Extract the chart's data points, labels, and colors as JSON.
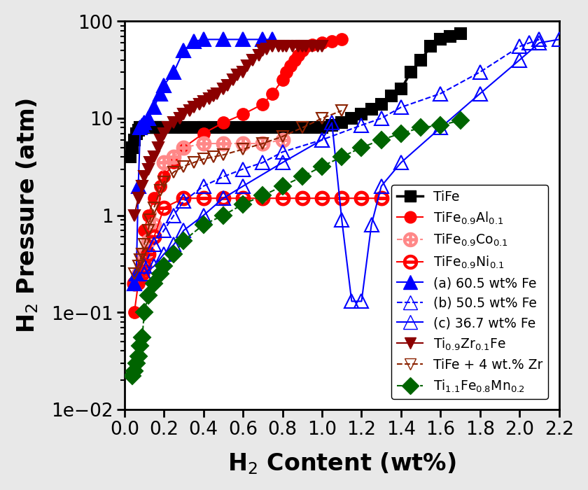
{
  "title": "",
  "xlabel": "H2 Content (wt%)",
  "ylabel": "H2 Pressure (atm)",
  "xlim": [
    0,
    2.2
  ],
  "ylim": [
    0.01,
    100
  ],
  "background_color": "#e8e8e8",
  "series": {
    "TiFe": {
      "color": "#000000",
      "marker": "s",
      "linestyle": "-",
      "linewidth": 2.5,
      "markersize": 12,
      "fillstyle": "full",
      "label": "TiFe",
      "x": [
        0.03,
        0.04,
        0.05,
        0.06,
        0.07,
        0.08,
        0.09,
        0.1,
        0.11,
        0.12,
        0.13,
        0.14,
        0.15,
        0.16,
        0.17,
        0.18,
        0.2,
        0.25,
        0.3,
        0.35,
        0.4,
        0.45,
        0.5,
        0.55,
        0.6,
        0.65,
        0.7,
        0.75,
        0.8,
        0.85,
        0.9,
        0.95,
        1.0,
        1.05,
        1.1,
        1.15,
        1.2,
        1.25,
        1.3,
        1.35,
        1.4,
        1.45,
        1.5,
        1.55,
        1.6,
        1.65,
        1.7
      ],
      "y": [
        4.0,
        5.0,
        6.0,
        7.0,
        7.5,
        8.0,
        8.0,
        8.0,
        8.0,
        8.0,
        8.0,
        8.0,
        8.0,
        8.0,
        8.0,
        8.0,
        8.0,
        8.0,
        8.0,
        8.0,
        8.0,
        8.0,
        8.0,
        8.0,
        8.0,
        8.0,
        8.0,
        8.0,
        8.0,
        8.0,
        8.0,
        8.0,
        8.0,
        8.5,
        9.0,
        10.0,
        11.0,
        12.5,
        14.0,
        17.0,
        20.0,
        30.0,
        40.0,
        55.0,
        65.0,
        70.0,
        75.0
      ]
    },
    "TiFe09Al01": {
      "color": "#ff0000",
      "marker": "o",
      "linestyle": "-",
      "linewidth": 1.5,
      "markersize": 12,
      "fillstyle": "full",
      "x": [
        0.05,
        0.07,
        0.09,
        0.1,
        0.12,
        0.15,
        0.18,
        0.2,
        0.25,
        0.3,
        0.4,
        0.5,
        0.6,
        0.7,
        0.75,
        0.8,
        0.82,
        0.84,
        0.86,
        0.88,
        0.9,
        0.92,
        0.95,
        1.0,
        1.05,
        1.1
      ],
      "y": [
        0.1,
        0.2,
        0.4,
        0.7,
        1.0,
        1.5,
        2.0,
        2.5,
        3.5,
        5.0,
        7.0,
        9.0,
        11.0,
        14.0,
        18.0,
        25.0,
        30.0,
        35.0,
        40.0,
        45.0,
        50.0,
        55.0,
        57.0,
        60.0,
        62.0,
        65.0
      ]
    },
    "TiFe09Co01": {
      "color": "#ff8888",
      "marker": "oplus",
      "linestyle": "--",
      "linewidth": 1.5,
      "markersize": 14,
      "fillstyle": "none",
      "x": [
        0.05,
        0.07,
        0.09,
        0.1,
        0.12,
        0.15,
        0.2,
        0.25,
        0.3,
        0.4,
        0.5,
        0.6,
        0.7,
        0.8
      ],
      "y": [
        0.2,
        0.25,
        0.3,
        0.4,
        0.55,
        0.8,
        3.5,
        4.0,
        5.0,
        5.5,
        5.5,
        5.5,
        5.5,
        6.0
      ]
    },
    "TiFe09Ni01": {
      "color": "#ff0000",
      "marker": "ominus",
      "linestyle": "-",
      "linewidth": 1.5,
      "markersize": 14,
      "fillstyle": "none",
      "x": [
        0.05,
        0.07,
        0.09,
        0.1,
        0.12,
        0.15,
        0.2,
        0.3,
        0.4,
        0.5,
        0.6,
        0.7,
        0.8,
        0.9,
        1.0,
        1.1,
        1.2,
        1.3
      ],
      "y": [
        0.2,
        0.22,
        0.25,
        0.3,
        0.4,
        0.6,
        1.2,
        1.5,
        1.5,
        1.5,
        1.5,
        1.5,
        1.5,
        1.5,
        1.5,
        1.5,
        1.5,
        1.5
      ]
    },
    "Fe60a": {
      "color": "#0000ff",
      "marker": "^",
      "linestyle": "-",
      "linewidth": 1.5,
      "markersize": 14,
      "fillstyle": "full",
      "label": "(a) 60.5 wt% Fe",
      "x": [
        0.05,
        0.06,
        0.07,
        0.08,
        0.09,
        0.1,
        0.12,
        0.15,
        0.18,
        0.2,
        0.25,
        0.3,
        0.35,
        0.4,
        0.5,
        0.6,
        0.7,
        0.75
      ],
      "y": [
        0.2,
        0.25,
        2.0,
        8.0,
        8.5,
        9.0,
        10.0,
        13.0,
        18.0,
        22.0,
        30.0,
        50.0,
        62.0,
        65.0,
        65.0,
        65.0,
        65.0,
        65.0
      ]
    },
    "Fe50b": {
      "color": "#0000ff",
      "marker": "^",
      "linestyle": "--",
      "linewidth": 1.5,
      "markersize": 14,
      "fillstyle": "none",
      "label": "(b) 50.5 wt% Fe",
      "x": [
        0.1,
        0.15,
        0.2,
        0.25,
        0.3,
        0.4,
        0.5,
        0.6,
        0.7,
        0.8,
        1.0,
        1.2,
        1.3,
        1.4,
        1.6,
        1.8,
        2.0,
        2.05,
        2.1
      ],
      "y": [
        0.3,
        0.5,
        0.7,
        1.0,
        1.4,
        2.0,
        2.5,
        3.0,
        3.5,
        4.5,
        6.0,
        8.5,
        10.0,
        13.0,
        18.0,
        30.0,
        55.0,
        60.0,
        65.0
      ]
    },
    "Fe36c": {
      "color": "#0000ff",
      "marker": "^",
      "linestyle": "-",
      "linewidth": 1.5,
      "markersize": 14,
      "fillstyle": "none",
      "label": "(c) 36.7 wt% Fe",
      "x": [
        0.1,
        0.15,
        0.2,
        0.25,
        0.3,
        0.4,
        0.5,
        0.6,
        0.8,
        1.0,
        1.05,
        1.1,
        1.15,
        1.2,
        1.25,
        1.3,
        1.4,
        1.6,
        1.8,
        2.0,
        2.1,
        2.2
      ],
      "y": [
        0.25,
        0.3,
        0.4,
        0.5,
        0.7,
        1.0,
        1.5,
        2.0,
        3.5,
        6.0,
        9.0,
        0.9,
        0.13,
        0.13,
        0.8,
        2.0,
        3.5,
        8.0,
        18.0,
        40.0,
        60.0,
        65.0
      ]
    },
    "Ti09Zr01Fe": {
      "color": "#8B0000",
      "marker": "v",
      "linestyle": "-",
      "linewidth": 1.5,
      "markersize": 12,
      "fillstyle": "full",
      "x": [
        0.05,
        0.07,
        0.09,
        0.1,
        0.12,
        0.13,
        0.15,
        0.17,
        0.18,
        0.2,
        0.22,
        0.25,
        0.28,
        0.3,
        0.33,
        0.35,
        0.38,
        0.4,
        0.43,
        0.45,
        0.47,
        0.5,
        0.52,
        0.55,
        0.57,
        0.6,
        0.62,
        0.65,
        0.68,
        0.7,
        0.72,
        0.75,
        0.78,
        0.8,
        0.82,
        0.85,
        0.88,
        0.9,
        0.92,
        0.95,
        0.98,
        1.0
      ],
      "y": [
        1.0,
        1.5,
        2.0,
        2.5,
        3.0,
        3.5,
        4.0,
        5.0,
        6.0,
        7.0,
        8.0,
        9.0,
        10.0,
        11.0,
        12.0,
        13.0,
        14.0,
        15.0,
        16.0,
        17.0,
        18.0,
        20.0,
        22.0,
        25.0,
        28.0,
        30.0,
        35.0,
        40.0,
        45.0,
        50.0,
        52.0,
        55.0,
        55.0,
        55.0,
        55.0,
        55.0,
        55.0,
        55.0,
        55.0,
        55.0,
        55.0,
        55.0
      ]
    },
    "TiFe4Zr": {
      "color": "#8B2200",
      "marker": "v",
      "linestyle": "--",
      "linewidth": 1.5,
      "markersize": 12,
      "fillstyle": "none",
      "label": "TiFe + 4 wt.% Zr",
      "x": [
        0.05,
        0.07,
        0.08,
        0.09,
        0.1,
        0.12,
        0.13,
        0.15,
        0.18,
        0.2,
        0.25,
        0.3,
        0.35,
        0.4,
        0.45,
        0.5,
        0.6,
        0.7,
        0.8,
        0.9,
        1.0,
        1.1
      ],
      "y": [
        0.25,
        0.3,
        0.35,
        0.4,
        0.5,
        0.7,
        0.9,
        1.2,
        1.8,
        2.2,
        2.8,
        3.2,
        3.5,
        3.8,
        4.0,
        4.2,
        4.8,
        5.5,
        6.5,
        8.0,
        10.0,
        12.0
      ]
    },
    "Ti11Fe08Mn02": {
      "color": "#006400",
      "marker": "D",
      "linestyle": "--",
      "linewidth": 1.5,
      "markersize": 12,
      "fillstyle": "full",
      "x": [
        0.04,
        0.05,
        0.06,
        0.07,
        0.08,
        0.09,
        0.1,
        0.12,
        0.15,
        0.18,
        0.2,
        0.25,
        0.3,
        0.4,
        0.5,
        0.6,
        0.7,
        0.8,
        0.9,
        1.0,
        1.1,
        1.2,
        1.3,
        1.4,
        1.5,
        1.6,
        1.7
      ],
      "y": [
        0.022,
        0.025,
        0.03,
        0.035,
        0.045,
        0.055,
        0.1,
        0.15,
        0.2,
        0.25,
        0.3,
        0.4,
        0.55,
        0.8,
        1.0,
        1.3,
        1.6,
        2.0,
        2.5,
        3.2,
        4.0,
        5.0,
        6.0,
        7.0,
        8.0,
        8.5,
        9.5
      ]
    }
  }
}
